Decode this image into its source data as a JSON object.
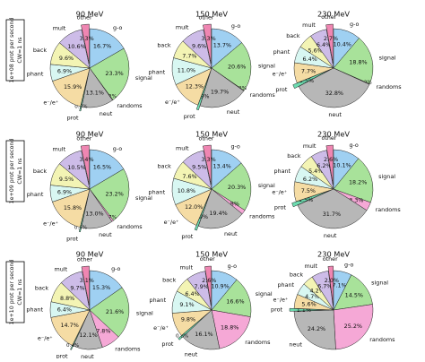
{
  "colors": {
    "g-o": "#9fd0f2",
    "signal": "#a8e29a",
    "randoms": "#f5a8d6",
    "neut": "#b7b7b7",
    "prot": "#6ddcb0",
    "e-/e+": "#f5dca4",
    "phant": "#d8f7f2",
    "back": "#f3f4b4",
    "mult": "#cdbce8",
    "other": "#ef86b2"
  },
  "row_labels": [
    "1e+08 prot per second\nCW=1 ns",
    "1e+09 prot per second\nCW=1 ns",
    "1e+10 prot per second\nCW=1 ns"
  ],
  "chart_data": [
    {
      "type": "pie",
      "title": "90 MeV",
      "row": 0,
      "col": 0,
      "slices": [
        {
          "label": "g-o",
          "value": 16.7
        },
        {
          "label": "signal",
          "value": 23.3
        },
        {
          "label": "randoms",
          "value": 0.2
        },
        {
          "label": "neut",
          "value": 13.1
        },
        {
          "label": "prot",
          "value": 0.5
        },
        {
          "label": "e⁻/e⁺",
          "value": 15.9
        },
        {
          "label": "phant",
          "value": 6.9
        },
        {
          "label": "back",
          "value": 9.6
        },
        {
          "label": "mult",
          "value": 10.6
        },
        {
          "label": "other",
          "value": 3.3
        }
      ]
    },
    {
      "type": "pie",
      "title": "150 MeV",
      "row": 0,
      "col": 1,
      "slices": [
        {
          "label": "g-o",
          "value": 13.7
        },
        {
          "label": "signal",
          "value": 20.6
        },
        {
          "label": "randoms",
          "value": 0.2
        },
        {
          "label": "neut",
          "value": 19.7
        },
        {
          "label": "prot",
          "value": 0.9
        },
        {
          "label": "e⁻/e⁺",
          "value": 12.3
        },
        {
          "label": "phant",
          "value": 11.0
        },
        {
          "label": "back",
          "value": 7.7
        },
        {
          "label": "mult",
          "value": 9.6
        },
        {
          "label": "other",
          "value": 3.3
        }
      ]
    },
    {
      "type": "pie",
      "title": "230 MeV",
      "row": 0,
      "col": 2,
      "slices": [
        {
          "label": "g-o",
          "value": 10.4
        },
        {
          "label": "signal",
          "value": 18.8
        },
        {
          "label": "randoms",
          "value": 0.2
        },
        {
          "label": "neut",
          "value": 32.8
        },
        {
          "label": "prot",
          "value": 1.5
        },
        {
          "label": "e⁻/e⁺",
          "value": 7.7
        },
        {
          "label": "phant",
          "value": 6.4
        },
        {
          "label": "back",
          "value": 5.6
        },
        {
          "label": "mult",
          "value": 6.4
        },
        {
          "label": "other",
          "value": 2.7
        }
      ]
    },
    {
      "type": "pie",
      "title": "90 MeV",
      "row": 1,
      "col": 0,
      "slices": [
        {
          "label": "g-o",
          "value": 16.5
        },
        {
          "label": "signal",
          "value": 23.2
        },
        {
          "label": "randoms",
          "value": 0.7
        },
        {
          "label": "neut",
          "value": 13.0
        },
        {
          "label": "prot",
          "value": 0.5
        },
        {
          "label": "e⁻/e⁺",
          "value": 15.8
        },
        {
          "label": "phant",
          "value": 6.9
        },
        {
          "label": "back",
          "value": 9.5
        },
        {
          "label": "mult",
          "value": 10.5
        },
        {
          "label": "other",
          "value": 3.4
        }
      ]
    },
    {
      "type": "pie",
      "title": "150 MeV",
      "row": 1,
      "col": 1,
      "slices": [
        {
          "label": "g-o",
          "value": 13.4
        },
        {
          "label": "signal",
          "value": 20.3
        },
        {
          "label": "randoms",
          "value": 1.8
        },
        {
          "label": "neut",
          "value": 19.4
        },
        {
          "label": "prot",
          "value": 0.9
        },
        {
          "label": "e⁻/e⁺",
          "value": 12.0
        },
        {
          "label": "phant",
          "value": 10.8
        },
        {
          "label": "back",
          "value": 7.6
        },
        {
          "label": "mult",
          "value": 9.5
        },
        {
          "label": "other",
          "value": 3.3
        }
      ]
    },
    {
      "type": "pie",
      "title": "230 MeV",
      "row": 1,
      "col": 2,
      "slices": [
        {
          "label": "g-o",
          "value": 10.1
        },
        {
          "label": "signal",
          "value": 18.2
        },
        {
          "label": "randoms",
          "value": 3.3
        },
        {
          "label": "neut",
          "value": 31.7
        },
        {
          "label": "prot",
          "value": 1.5
        },
        {
          "label": "e⁻/e⁺",
          "value": 7.5
        },
        {
          "label": "phant",
          "value": 6.2
        },
        {
          "label": "back",
          "value": 5.4
        },
        {
          "label": "mult",
          "value": 6.2
        },
        {
          "label": "other",
          "value": 2.6
        }
      ]
    },
    {
      "type": "pie",
      "title": "90 MeV",
      "row": 2,
      "col": 0,
      "slices": [
        {
          "label": "g-o",
          "value": 15.3
        },
        {
          "label": "signal",
          "value": 21.6
        },
        {
          "label": "randoms",
          "value": 7.8
        },
        {
          "label": "neut",
          "value": 12.1
        },
        {
          "label": "prot",
          "value": 0.4
        },
        {
          "label": "e⁻/e⁺",
          "value": 14.7
        },
        {
          "label": "phant",
          "value": 6.4
        },
        {
          "label": "back",
          "value": 8.8
        },
        {
          "label": "mult",
          "value": 9.7
        },
        {
          "label": "other",
          "value": 3.1
        }
      ]
    },
    {
      "type": "pie",
      "title": "150 MeV",
      "row": 2,
      "col": 1,
      "slices": [
        {
          "label": "g-o",
          "value": 10.9
        },
        {
          "label": "signal",
          "value": 16.6
        },
        {
          "label": "randoms",
          "value": 18.8
        },
        {
          "label": "neut",
          "value": 16.1
        },
        {
          "label": "prot",
          "value": 0.8
        },
        {
          "label": "e⁻/e⁺",
          "value": 9.8
        },
        {
          "label": "phant",
          "value": 9.1
        },
        {
          "label": "back",
          "value": 6.4
        },
        {
          "label": "mult",
          "value": 7.9
        },
        {
          "label": "other",
          "value": 2.6
        }
      ]
    },
    {
      "type": "pie",
      "title": "230 MeV",
      "row": 2,
      "col": 2,
      "slices": [
        {
          "label": "g-o",
          "value": 7.1
        },
        {
          "label": "signal",
          "value": 14.5
        },
        {
          "label": "randoms",
          "value": 25.2
        },
        {
          "label": "neut",
          "value": 24.2
        },
        {
          "label": "prot",
          "value": 1.1
        },
        {
          "label": "e⁻/e⁺",
          "value": 5.6
        },
        {
          "label": "phant",
          "value": 4.7
        },
        {
          "label": "back",
          "value": 4.2
        },
        {
          "label": "mult",
          "value": 6.7
        },
        {
          "label": "other",
          "value": 2.0
        }
      ]
    }
  ]
}
